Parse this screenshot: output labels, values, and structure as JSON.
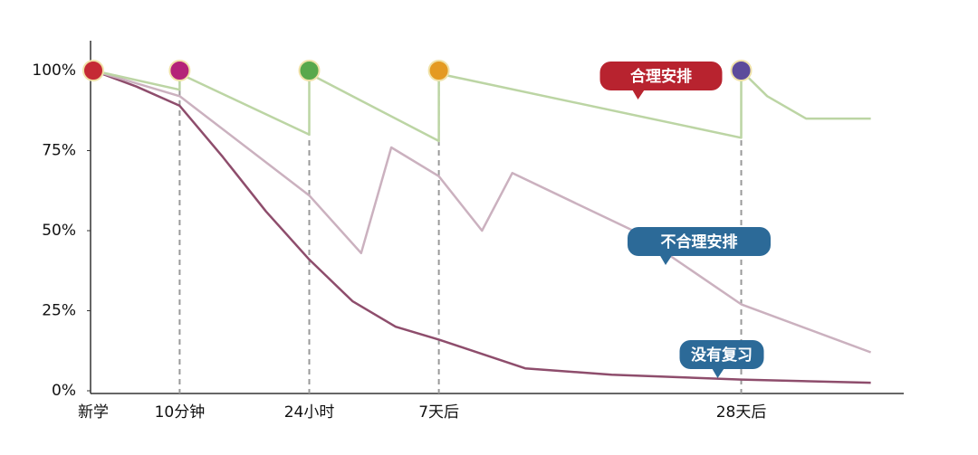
{
  "chart_data": {
    "type": "line",
    "xlim": [
      0,
      18.8
    ],
    "ylim": [
      0,
      100
    ],
    "xticks": [
      {
        "value": 0,
        "label": "新学"
      },
      {
        "value": 2,
        "label": "10分钟"
      },
      {
        "value": 5,
        "label": "24小时"
      },
      {
        "value": 8,
        "label": "7天后"
      },
      {
        "value": 15,
        "label": "28天后"
      }
    ],
    "yticks": [
      {
        "value": 0,
        "label": "0%"
      },
      {
        "value": 25,
        "label": "25%"
      },
      {
        "value": 50,
        "label": "50%"
      },
      {
        "value": 75,
        "label": "75%"
      },
      {
        "value": 100,
        "label": "100%"
      }
    ],
    "series": [
      {
        "name": "没有复习",
        "color": "#8e4d6c",
        "label_color": "#2c6a98",
        "x": [
          0,
          1,
          2,
          3,
          4,
          5,
          6,
          7,
          8,
          10,
          12,
          15,
          18
        ],
        "values": [
          100,
          95,
          89,
          73,
          56,
          41,
          28,
          20,
          16,
          7,
          5,
          3.5,
          2.5
        ]
      },
      {
        "name": "不合理安排",
        "color": "#cbb1bf",
        "label_color": "#2c6a98",
        "x": [
          0,
          2,
          5,
          6.2,
          6.9,
          8,
          9,
          9.7,
          12.5,
          15,
          18
        ],
        "values": [
          100,
          92,
          61,
          43,
          76,
          67,
          50,
          68,
          50,
          27,
          12
        ]
      },
      {
        "name": "合理安排",
        "color": "#bcd5a4",
        "label_color": "#b8232f",
        "x": [
          0,
          2,
          2,
          5,
          5,
          8,
          8,
          15,
          15,
          15.6,
          16.5,
          18
        ],
        "values": [
          100,
          94,
          99,
          80,
          99,
          78,
          99,
          79,
          100,
          92,
          85,
          85
        ]
      }
    ],
    "reviews": {
      "x": [
        0,
        2,
        5,
        8,
        15
      ],
      "values": [
        100,
        100,
        100,
        100,
        100
      ],
      "colors": [
        "#c52a35",
        "#b42378",
        "#58a84c",
        "#e49a22",
        "#5c4b9b"
      ]
    }
  }
}
